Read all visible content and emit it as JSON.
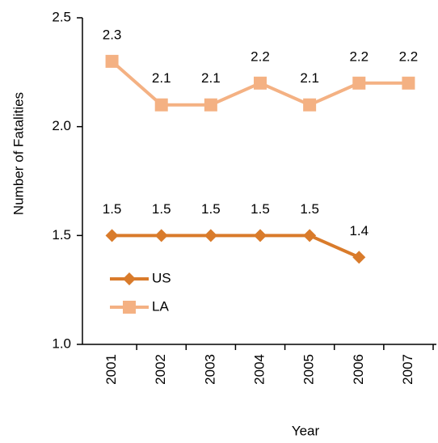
{
  "chart_data": {
    "type": "line",
    "x_label": "Year",
    "y_label": "Number of Fatalities",
    "categories": [
      "2001",
      "2002",
      "2003",
      "2004",
      "2005",
      "2006",
      "2007"
    ],
    "series": [
      {
        "name": "US",
        "color": "#d97b2b",
        "marker": "diamond",
        "values": [
          1.5,
          1.5,
          1.5,
          1.5,
          1.5,
          1.4,
          null
        ]
      },
      {
        "name": "LA",
        "color": "#f4b183",
        "marker": "square",
        "values": [
          2.3,
          2.1,
          2.1,
          2.2,
          2.1,
          2.2,
          2.2
        ]
      }
    ],
    "ylim": [
      1.0,
      2.5
    ],
    "yticks": [
      {
        "value": 1.0,
        "label": "1.0"
      },
      1.5,
      {
        "value": 2.0,
        "label": "2.0"
      },
      2.5
    ],
    "grid": false,
    "legend": "lower left",
    "data_labels": true
  }
}
